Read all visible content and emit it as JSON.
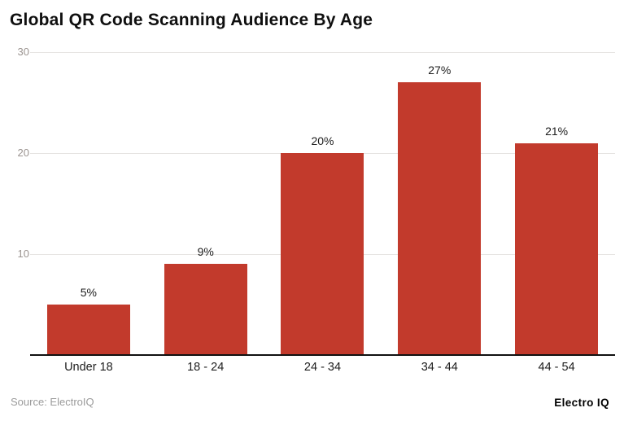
{
  "header": {
    "title": "Global QR Code Scanning Audience By Age"
  },
  "footer": {
    "source": "Source: ElectroIQ",
    "brand": "Electro IQ"
  },
  "colors": {
    "bar": "#c23a2c",
    "gridline": "#e6e4e2",
    "axis": "#111111",
    "ytick_text": "#9b9490",
    "label_text": "#1d1d1d"
  },
  "chart_data": {
    "type": "bar",
    "title": "Global QR Code Scanning Audience By Age",
    "categories": [
      "Under 18",
      "18 - 24",
      "24 - 34",
      "34 - 44",
      "44 - 54"
    ],
    "values": [
      5,
      9,
      20,
      27,
      21
    ],
    "value_labels": [
      "5%",
      "9%",
      "20%",
      "27%",
      "21%"
    ],
    "xlabel": "",
    "ylabel": "",
    "ylim": [
      0,
      30
    ],
    "yticks": [
      10,
      20,
      30
    ],
    "grid": true,
    "legend": false,
    "bar_color": "#c23a2c"
  }
}
